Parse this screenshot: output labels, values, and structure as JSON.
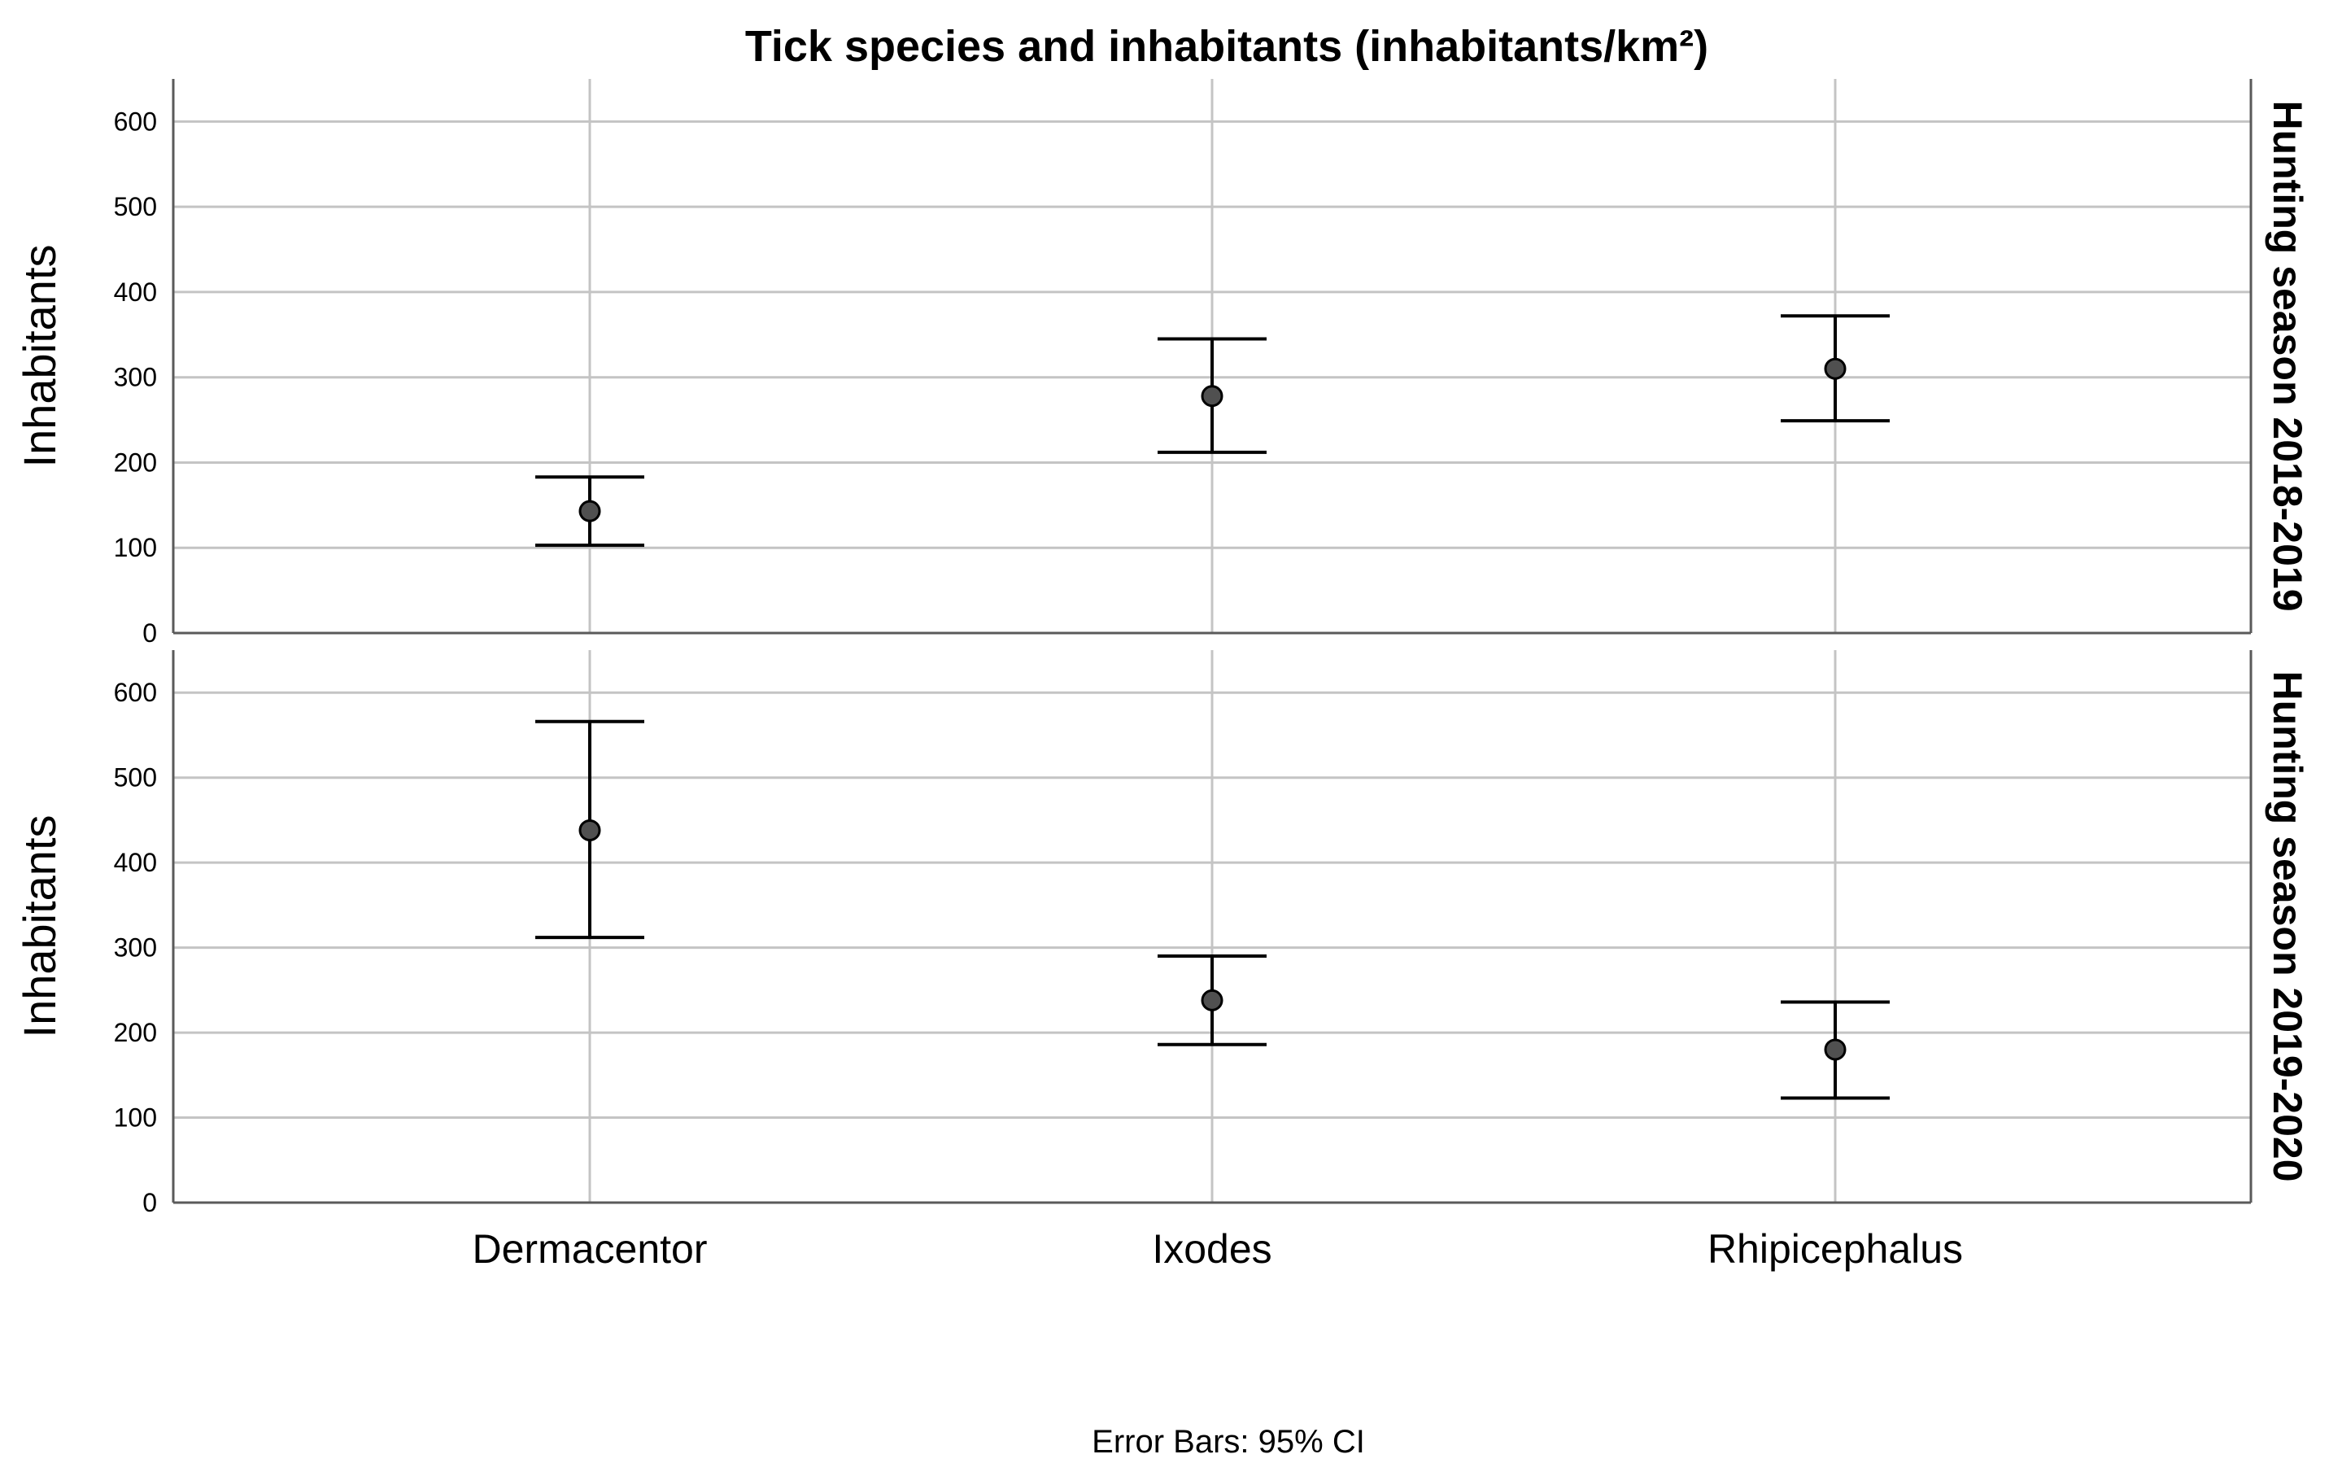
{
  "chart_data": {
    "type": "scatter",
    "title": "Tick species and inhabitants (inhabitants/km²)",
    "ylabel": "Inhabitants",
    "xlabel": "",
    "categories": [
      "Dermacentor",
      "Ixodes",
      "Rhipicephalus"
    ],
    "ylim": [
      0,
      650
    ],
    "yticks": [
      "0",
      "100",
      "200",
      "300",
      "400",
      "500",
      "600"
    ],
    "grid": true,
    "footnote": "Error Bars: 95% CI",
    "panels": [
      {
        "facet_label": "Hunting season 2018-2019",
        "points": [
          {
            "category": "Dermacentor",
            "mean": 143,
            "ci_low": 103,
            "ci_high": 183
          },
          {
            "category": "Ixodes",
            "mean": 278,
            "ci_low": 212,
            "ci_high": 345
          },
          {
            "category": "Rhipicephalus",
            "mean": 310,
            "ci_low": 249,
            "ci_high": 372
          }
        ]
      },
      {
        "facet_label": "Hunting season 2019-2020",
        "points": [
          {
            "category": "Dermacentor",
            "mean": 438,
            "ci_low": 312,
            "ci_high": 566
          },
          {
            "category": "Ixodes",
            "mean": 238,
            "ci_low": 186,
            "ci_high": 290
          },
          {
            "category": "Rhipicephalus",
            "mean": 180,
            "ci_low": 123,
            "ci_high": 236
          }
        ]
      }
    ]
  }
}
